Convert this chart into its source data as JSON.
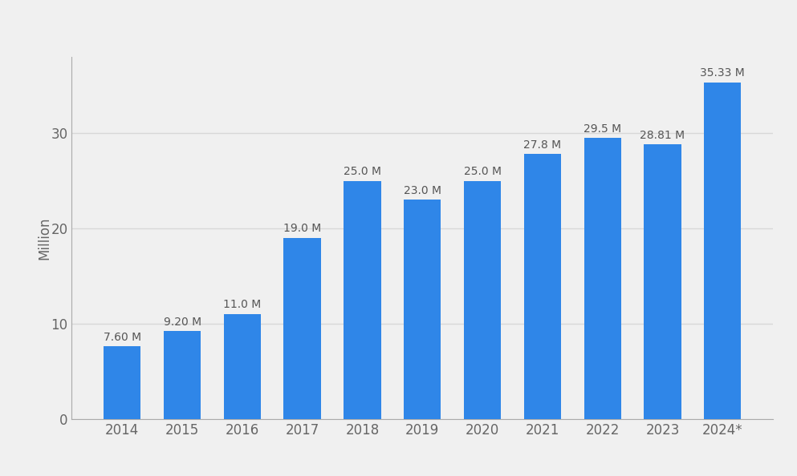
{
  "categories": [
    "2014",
    "2015",
    "2016",
    "2017",
    "2018",
    "2019",
    "2020",
    "2021",
    "2022",
    "2023",
    "2024*"
  ],
  "values": [
    7.6,
    9.2,
    11.0,
    19.0,
    25.0,
    23.0,
    25.0,
    27.8,
    29.5,
    28.81,
    35.33
  ],
  "labels": [
    "7.60 M",
    "9.20 M",
    "11.0 M",
    "19.0 M",
    "25.0 M",
    "23.0 M",
    "25.0 M",
    "27.8 M",
    "29.5 M",
    "28.81 M",
    "35.33 M"
  ],
  "bar_color": "#2f86e8",
  "background_color": "#f0f0f0",
  "ylabel": "Million",
  "ylim": [
    0,
    38
  ],
  "yticks": [
    0,
    10,
    20,
    30
  ],
  "grid_color": "#d8d8d8",
  "label_color": "#555555",
  "tick_color": "#666666",
  "label_fontsize": 10,
  "axis_fontsize": 12,
  "bar_width": 0.62,
  "spine_color": "#aaaaaa"
}
